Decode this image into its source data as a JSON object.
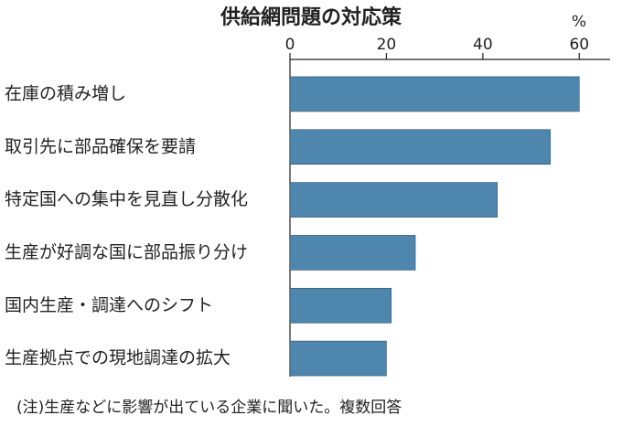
{
  "chart_data": {
    "type": "bar",
    "orientation": "horizontal",
    "title": "供給網問題の対応策",
    "unit": "%",
    "note": "(注)生産などに影響が出ている企業に聞いた。複数回答",
    "categories": [
      "在庫の積み増し",
      "取引先に部品確保を要請",
      "特定国への集中を見直し分散化",
      "生産が好調な国に部品振り分け",
      "国内生産・調達へのシフト",
      "生産拠点での現地調達の拡大"
    ],
    "values": [
      60,
      54,
      43,
      26,
      21,
      20
    ],
    "color": "#4f86ad",
    "xlim": [
      0,
      66.4
    ],
    "xticks": [
      0,
      20,
      40,
      60
    ]
  }
}
